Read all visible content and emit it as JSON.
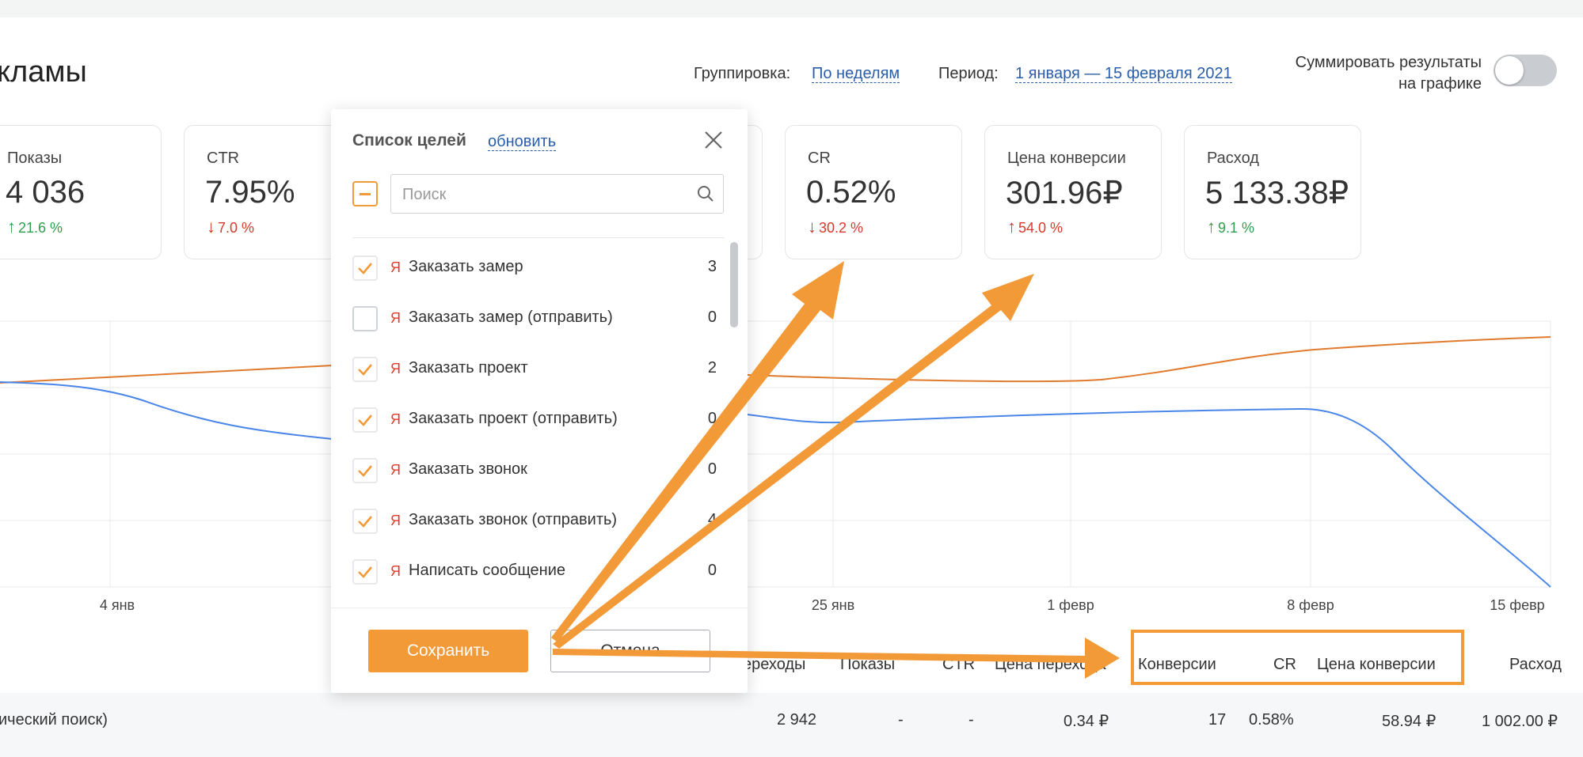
{
  "header": {
    "title": "кламы",
    "grouping_label": "Группировка:",
    "grouping_value": "По неделям",
    "period_label": "Период:",
    "period_value": "1 января — 15 февраля 2021",
    "sum_label_line1": "Суммировать результаты",
    "sum_label_line2": "на графике",
    "sum_toggle_on": false
  },
  "metrics": [
    {
      "label": "Показы",
      "value": "4 036",
      "delta": "21.6 %",
      "direction": "up"
    },
    {
      "label": "CTR",
      "value": "7.95%",
      "delta": "7.0 %",
      "direction": "down"
    },
    {
      "label": "CR",
      "value": "0.52%",
      "delta": "30.2 %",
      "direction": "down"
    },
    {
      "label": "Цена конверсии",
      "value": "301.96₽",
      "delta": "54.0 %",
      "direction": "up"
    },
    {
      "label": "Расход",
      "value": "5 133.38₽",
      "delta": "9.1 %",
      "direction": "up"
    }
  ],
  "chart_data": {
    "type": "line",
    "x_ticks": [
      "4 янв",
      "25 янв",
      "1 февр",
      "8 февр",
      "15 февр"
    ],
    "series_colors": [
      "#e07a2e",
      "#4a86e8"
    ]
  },
  "table": {
    "headers": [
      "ереходы",
      "Показы",
      "CTR",
      "Цена перехода",
      "Конверсии",
      "CR",
      "Цена конверсии",
      "Расход"
    ],
    "row": {
      "name": "ический поиск)",
      "values": [
        "2 942",
        "-",
        "-",
        "0.34 ₽",
        "17",
        "0.58%",
        "58.94 ₽",
        "1 002.00 ₽"
      ]
    }
  },
  "modal": {
    "title": "Список целей",
    "refresh": "обновить",
    "search_placeholder": "Поиск",
    "ya_label": "Я",
    "items": [
      {
        "name": "Заказать замер",
        "count": "3",
        "checked": true
      },
      {
        "name": "Заказать замер (отправить)",
        "count": "0",
        "checked": false
      },
      {
        "name": "Заказать проект",
        "count": "2",
        "checked": true
      },
      {
        "name": "Заказать проект (отправить)",
        "count": "0",
        "checked": true
      },
      {
        "name": "Заказать звонок",
        "count": "0",
        "checked": true
      },
      {
        "name": "Заказать звонок (отправить)",
        "count": "4",
        "checked": true
      },
      {
        "name": "Написать сообщение",
        "count": "0",
        "checked": true
      }
    ],
    "save": "Сохранить",
    "cancel": "Отмена"
  },
  "colors": {
    "accent": "#f39a38",
    "link": "#2a5ea8",
    "positive": "#2e9e4a",
    "negative": "#d63a2b"
  }
}
